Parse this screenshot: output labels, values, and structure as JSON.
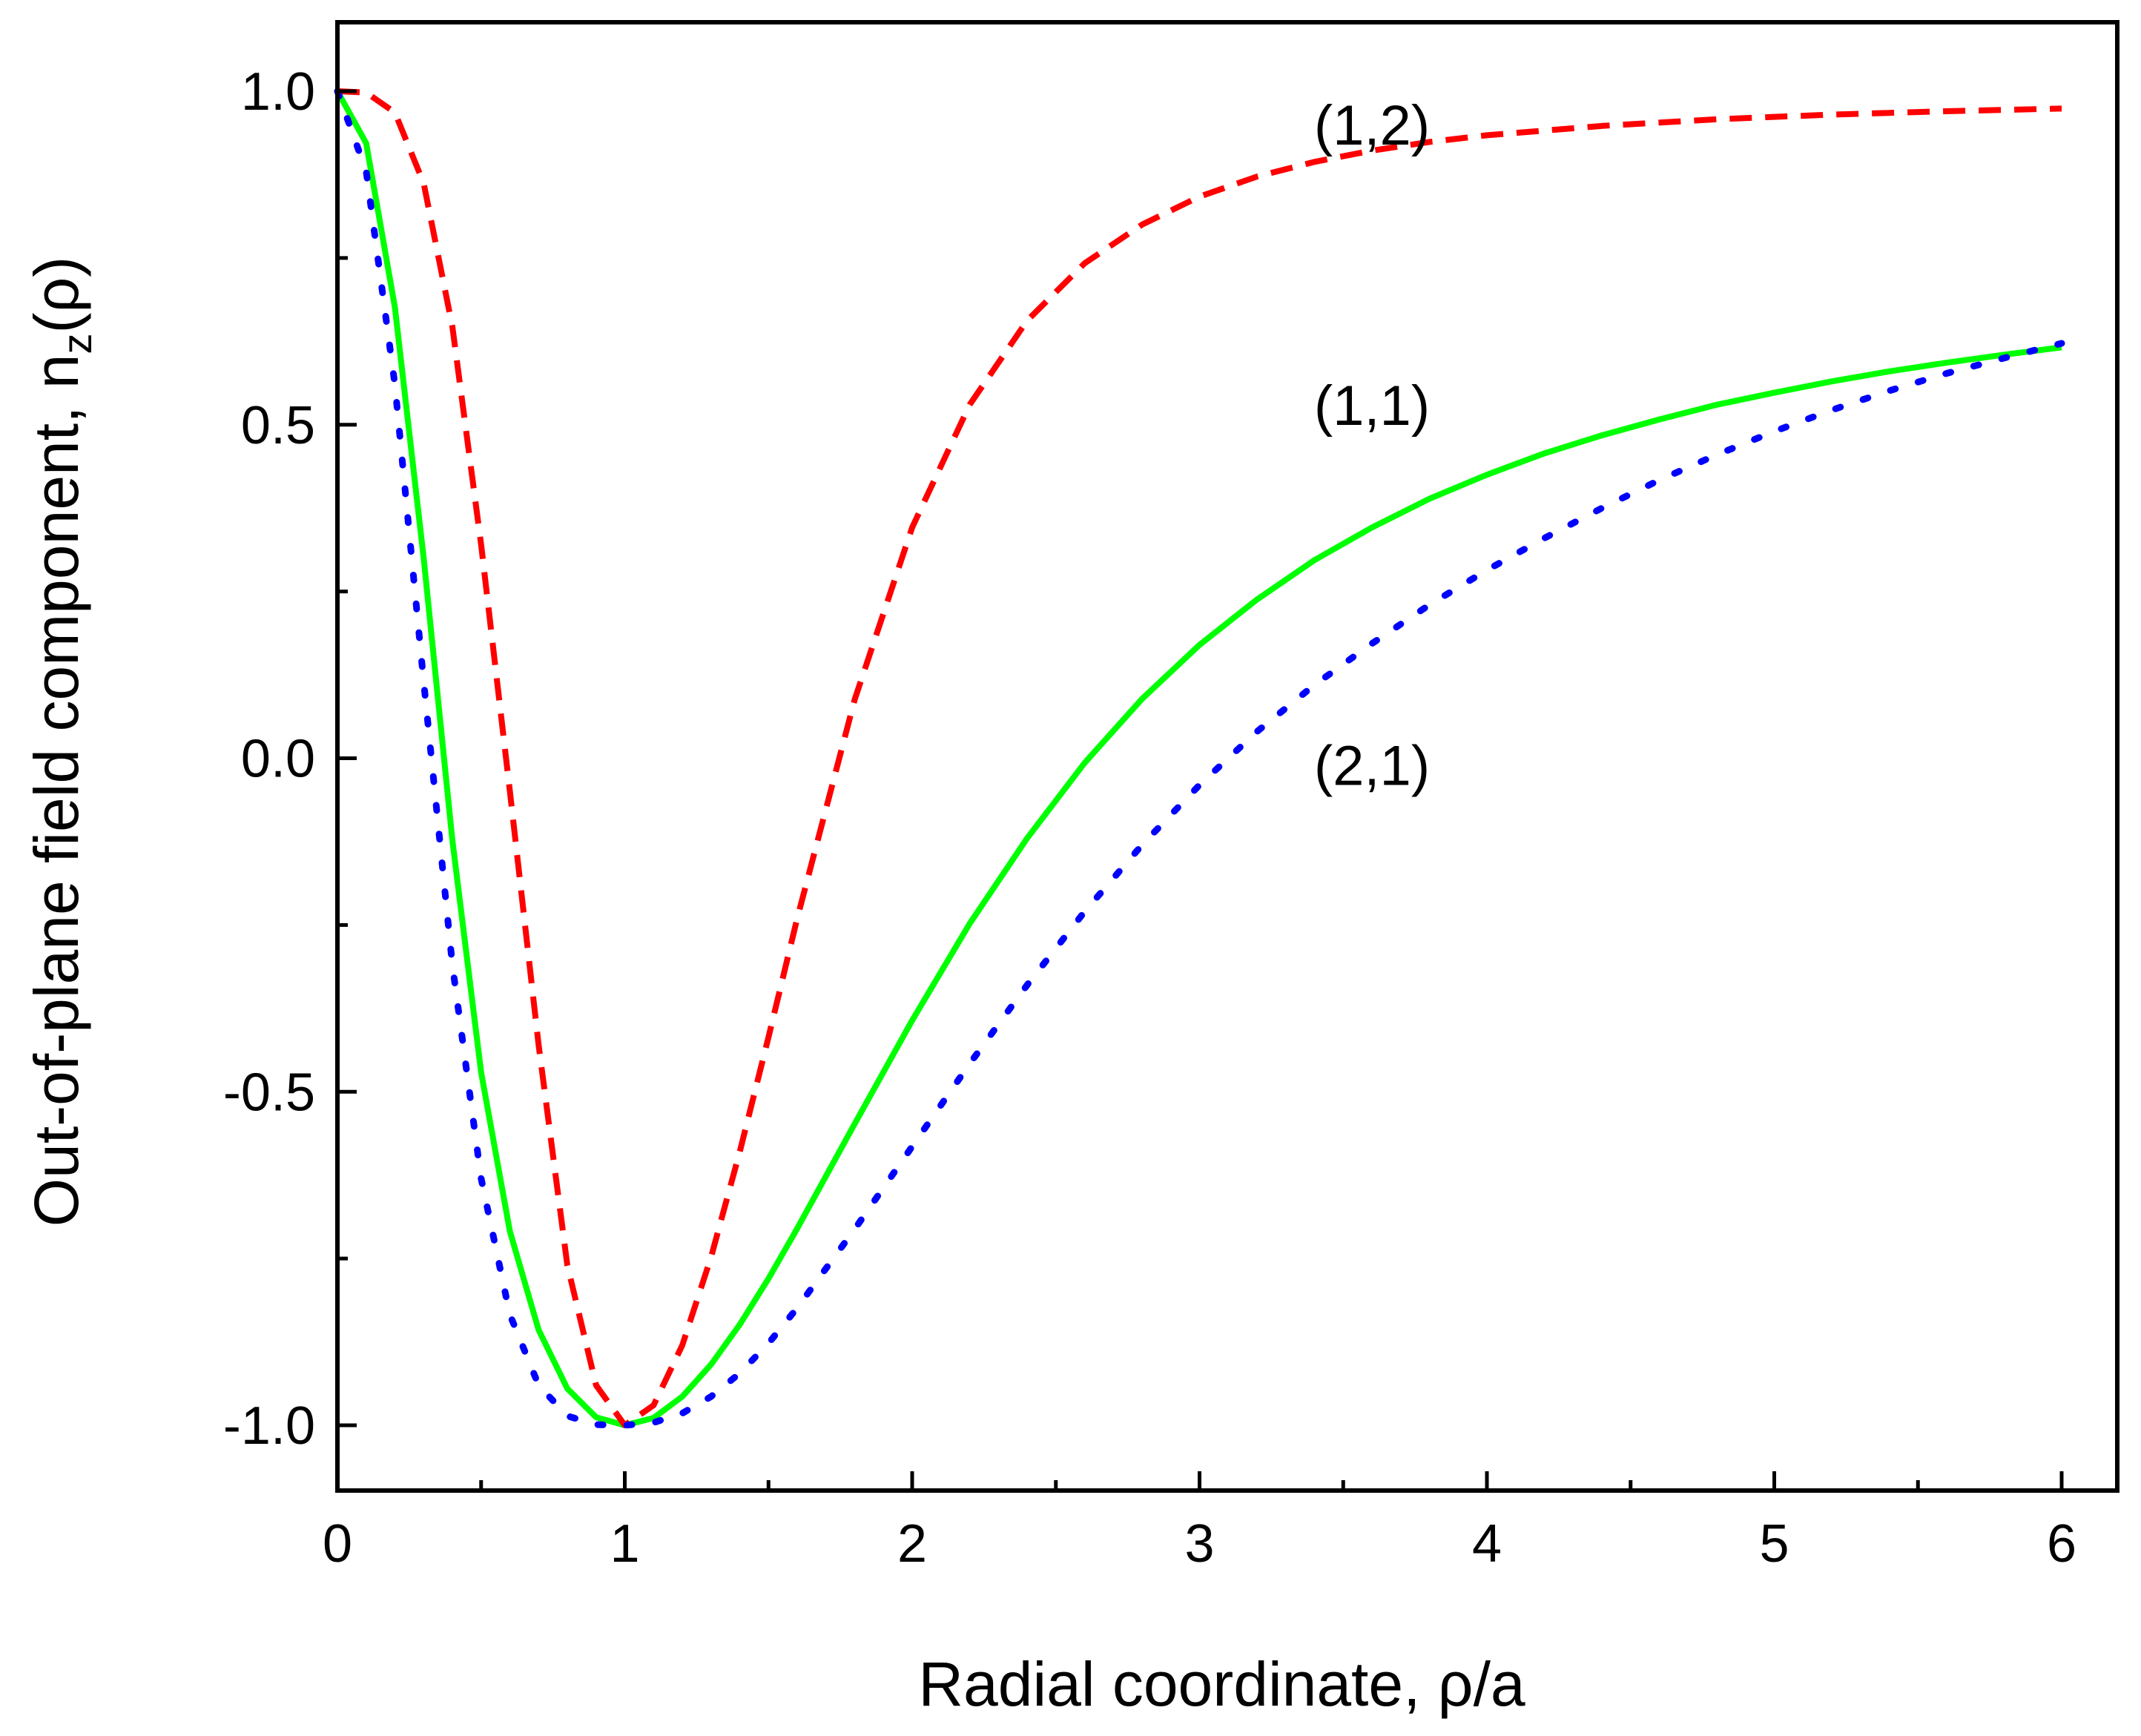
{
  "chart_data": {
    "type": "line",
    "title": "",
    "xlabel": "Radial coordinate, ρ/a",
    "ylabel_prefix": "Out-of-plane field component, n",
    "ylabel_subscript": "z",
    "ylabel_suffix": "(ρ)",
    "xlim": [
      0,
      6.2
    ],
    "ylim": [
      -1.1,
      1.1
    ],
    "xticks": [
      0,
      1,
      2,
      3,
      4,
      5,
      6
    ],
    "xtick_labels": [
      "0",
      "1",
      "2",
      "3",
      "4",
      "5",
      "6"
    ],
    "yticks": [
      -1.0,
      -0.5,
      0.0,
      0.5,
      1.0
    ],
    "ytick_labels": [
      "-1.0",
      "-0.5",
      "0.0",
      "0.5",
      "1.0"
    ],
    "grid": false,
    "legend": "none",
    "series": [
      {
        "name": "(1,1)",
        "color": "#00ff00",
        "style": "solid",
        "x": [
          0,
          0.1,
          0.2,
          0.3,
          0.4,
          0.5,
          0.6,
          0.7,
          0.8,
          0.9,
          1.0,
          1.1,
          1.2,
          1.3,
          1.4,
          1.5,
          1.6,
          1.8,
          2.0,
          2.2,
          2.4,
          2.6,
          2.8,
          3.0,
          3.2,
          3.4,
          3.6,
          3.8,
          4.0,
          4.2,
          4.4,
          4.6,
          4.8,
          5.0,
          5.2,
          5.4,
          5.6,
          5.8,
          6.0
        ],
        "y": [
          1.0,
          0.922,
          0.676,
          0.3,
          -0.123,
          -0.471,
          -0.709,
          -0.857,
          -0.945,
          -0.988,
          -1.0,
          -0.989,
          -0.957,
          -0.909,
          -0.849,
          -0.78,
          -0.705,
          -0.548,
          -0.393,
          -0.248,
          -0.12,
          -0.007,
          0.089,
          0.17,
          0.238,
          0.297,
          0.346,
          0.389,
          0.425,
          0.457,
          0.484,
          0.508,
          0.53,
          0.548,
          0.565,
          0.58,
          0.593,
          0.605,
          0.616
        ]
      },
      {
        "name": "(1,2)",
        "color": "#ff0000",
        "style": "dashed",
        "x": [
          0,
          0.1,
          0.2,
          0.3,
          0.4,
          0.5,
          0.6,
          0.7,
          0.8,
          0.9,
          1.0,
          1.1,
          1.2,
          1.3,
          1.4,
          1.5,
          1.6,
          1.8,
          2.0,
          2.2,
          2.4,
          2.6,
          2.8,
          3.0,
          3.2,
          3.4,
          3.6,
          3.8,
          4.0,
          4.4,
          4.8,
          5.2,
          5.6,
          6.0
        ],
        "y": [
          1.0,
          0.998,
          0.968,
          0.862,
          0.647,
          0.32,
          -0.049,
          -0.43,
          -0.76,
          -0.94,
          -1.0,
          -0.97,
          -0.88,
          -0.748,
          -0.59,
          -0.418,
          -0.24,
          0.088,
          0.346,
          0.53,
          0.656,
          0.742,
          0.8,
          0.842,
          0.872,
          0.894,
          0.911,
          0.924,
          0.934,
          0.948,
          0.958,
          0.965,
          0.97,
          0.974
        ]
      },
      {
        "name": "(2,1)",
        "color": "#0000ff",
        "style": "dotted",
        "x": [
          0,
          0.1,
          0.2,
          0.3,
          0.4,
          0.5,
          0.6,
          0.7,
          0.8,
          0.9,
          1.0,
          1.1,
          1.2,
          1.3,
          1.4,
          1.5,
          1.6,
          1.8,
          2.0,
          2.2,
          2.4,
          2.6,
          2.8,
          3.0,
          3.2,
          3.4,
          3.6,
          3.8,
          4.0,
          4.2,
          4.4,
          4.6,
          4.8,
          5.0,
          5.2,
          5.4,
          5.6,
          5.8,
          6.0
        ],
        "y": [
          1.0,
          0.88,
          0.56,
          0.115,
          -0.31,
          -0.63,
          -0.834,
          -0.94,
          -0.986,
          -0.999,
          -1.0,
          -0.996,
          -0.982,
          -0.957,
          -0.922,
          -0.877,
          -0.824,
          -0.706,
          -0.582,
          -0.458,
          -0.34,
          -0.23,
          -0.13,
          -0.04,
          0.04,
          0.11,
          0.172,
          0.23,
          0.282,
          0.33,
          0.375,
          0.417,
          0.455,
          0.49,
          0.522,
          0.551,
          0.577,
          0.6,
          0.622
        ]
      }
    ],
    "annotations": [
      {
        "text": "(1,2)",
        "x": 3.6,
        "y": 0.92
      },
      {
        "text": "(1,1)",
        "x": 3.6,
        "y": 0.5
      },
      {
        "text": "(2,1)",
        "x": 3.6,
        "y": -0.04
      }
    ]
  }
}
